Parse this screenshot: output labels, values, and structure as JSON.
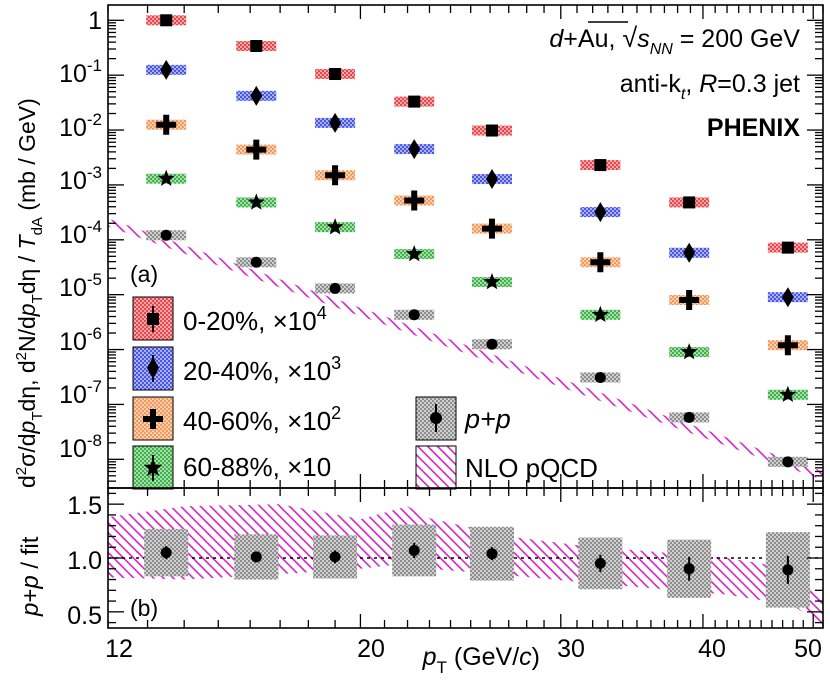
{
  "chart_data": [
    {
      "panel": "(a)",
      "type": "scatter",
      "title": "",
      "xlabel": "p_T (GeV/c)",
      "ylabel": "d²σ/dp_T dη, d²N/dp_T dη / T_dA (mb / GeV)",
      "xscale": "log",
      "yscale": "log",
      "xlim": [
        12,
        51
      ],
      "ylim": [
        3e-09,
        1.9
      ],
      "x": [
        13.5,
        16.2,
        19.0,
        22.3,
        26.1,
        32.5,
        38.9,
        47.5
      ],
      "series": [
        {
          "name": "0-20%, ×10⁴",
          "marker": "square",
          "color": "#e8474f",
          "values": [
            1.0,
            0.34,
            0.105,
            0.033,
            0.0098,
            0.0023,
            0.00048,
            7.2e-05
          ]
        },
        {
          "name": "20-40%, ×10³",
          "marker": "diamond",
          "color": "#4a56e8",
          "values": [
            0.125,
            0.042,
            0.0135,
            0.0045,
            0.00128,
            0.00032,
            5.8e-05,
            9e-06
          ]
        },
        {
          "name": "40-60%, ×10²",
          "marker": "cross",
          "color": "#f29a5c",
          "values": [
            0.0125,
            0.0044,
            0.0015,
            0.00052,
            0.00016,
            3.9e-05,
            8e-06,
            1.2e-06
          ]
        },
        {
          "name": "60-88%, ×10",
          "marker": "star",
          "color": "#3db34a",
          "values": [
            0.0013,
            0.00048,
            0.00017,
            5.5e-05,
            1.7e-05,
            4.3e-06,
            9e-07,
            1.5e-07
          ]
        },
        {
          "name": "p+p",
          "marker": "circle",
          "color": "#999999",
          "values": [
            0.000121,
            3.9e-05,
            1.3e-05,
            4.3e-06,
            1.25e-06,
            3.1e-07,
            5.8e-08,
            9e-09
          ]
        }
      ],
      "band": {
        "name": "NLO pQCD",
        "color": "#d424c4",
        "x": [
          12,
          51
        ],
        "lower": [
          0.000175,
          4.2e-09
        ],
        "upper": [
          0.000245,
          6e-09
        ]
      },
      "yticks": [
        "1",
        "10⁻¹",
        "10⁻²",
        "10⁻³",
        "10⁻⁴",
        "10⁻⁵",
        "10⁻⁶",
        "10⁻⁷",
        "10⁻⁸"
      ],
      "legend_position": "bottom-left",
      "annotations": [
        "d+Au, √s_NN = 200 GeV",
        "anti-k_t, R=0.3 jet",
        "PHENIX"
      ]
    },
    {
      "panel": "(b)",
      "type": "scatter",
      "xlabel": "p_T (GeV/c)",
      "ylabel": "p+p / fit",
      "xscale": "log",
      "xlim": [
        12,
        51
      ],
      "ylim": [
        0.35,
        1.65
      ],
      "x": [
        13.5,
        16.2,
        19.0,
        22.3,
        26.1,
        32.5,
        38.9,
        47.5
      ],
      "values": [
        1.05,
        1.01,
        1.01,
        1.07,
        1.04,
        0.95,
        0.9,
        0.89
      ],
      "stat_errors": [
        0.06,
        0.05,
        0.06,
        0.07,
        0.06,
        0.08,
        0.11,
        0.13
      ],
      "sys_errors": [
        0.22,
        0.21,
        0.2,
        0.24,
        0.25,
        0.24,
        0.27,
        0.35
      ],
      "reference_line": 1.0,
      "band_x": [
        12,
        14,
        17,
        20,
        22,
        23,
        27,
        31,
        36,
        42,
        48,
        51
      ],
      "band_upper": [
        1.38,
        1.48,
        1.5,
        1.36,
        1.48,
        1.37,
        1.2,
        1.12,
        1.06,
        1.0,
        0.9,
        0.62
      ],
      "band_lower": [
        0.82,
        0.8,
        0.85,
        0.9,
        0.95,
        0.9,
        0.84,
        0.78,
        0.72,
        0.66,
        0.56,
        0.36
      ],
      "yticks": [
        "0.5",
        "1.0",
        "1.5"
      ],
      "xticks": [
        "12",
        "20",
        "30",
        "40",
        "50"
      ]
    }
  ],
  "legend": {
    "entries": [
      {
        "label": "0-20%, ×10",
        "exp": "4"
      },
      {
        "label": "20-40%, ×10",
        "exp": "3"
      },
      {
        "label": "40-60%, ×10",
        "exp": "2"
      },
      {
        "label": "60-88%, ×10",
        "exp": ""
      },
      {
        "label": "p+p",
        "exp": ""
      },
      {
        "label": "NLO pQCD",
        "exp": ""
      }
    ]
  },
  "annotations": {
    "collision_prefix": "d",
    "collision_suffix": "+Au, ",
    "sqrt_s": "s",
    "sqrt_s_sub": "NN",
    "energy": " = 200 GeV",
    "jet_algo": "anti-k",
    "jet_algo_sub": "t",
    "jet_radius_label": ", ",
    "jet_radius_var": "R",
    "jet_radius_value": "=0.3 jet",
    "experiment": "PHENIX",
    "panel_a": "(a)",
    "panel_b": "(b)"
  },
  "axes": {
    "top_yticks": [
      {
        "base": "1",
        "exp": ""
      },
      {
        "base": "10",
        "exp": "-1"
      },
      {
        "base": "10",
        "exp": "-2"
      },
      {
        "base": "10",
        "exp": "-3"
      },
      {
        "base": "10",
        "exp": "-4"
      },
      {
        "base": "10",
        "exp": "-5"
      },
      {
        "base": "10",
        "exp": "-6"
      },
      {
        "base": "10",
        "exp": "-7"
      },
      {
        "base": "10",
        "exp": "-8"
      }
    ],
    "bottom_yticks": [
      "0.5",
      "1.0",
      "1.5"
    ],
    "xticks": [
      "12",
      "20",
      "30",
      "40",
      "50"
    ],
    "ylabel_top": {
      "d2": "d",
      "two": "2",
      "sigma": "σ/d",
      "p": "p",
      "T": "T",
      "deta": "dη, d",
      "N": "N/d",
      "p2": "p",
      "T2": "T",
      "deta2": "dη / ",
      "Tda": "T",
      "dA": "dA",
      "units": " (mb / GeV)"
    },
    "ylabel_bottom": {
      "pp": "p",
      "plus": "+",
      "pp2": "p",
      "rest": " / fit"
    },
    "xlabel": {
      "p": "p",
      "T": "T",
      "units_open": " (GeV/",
      "c": "c",
      "units_close": ")"
    }
  }
}
